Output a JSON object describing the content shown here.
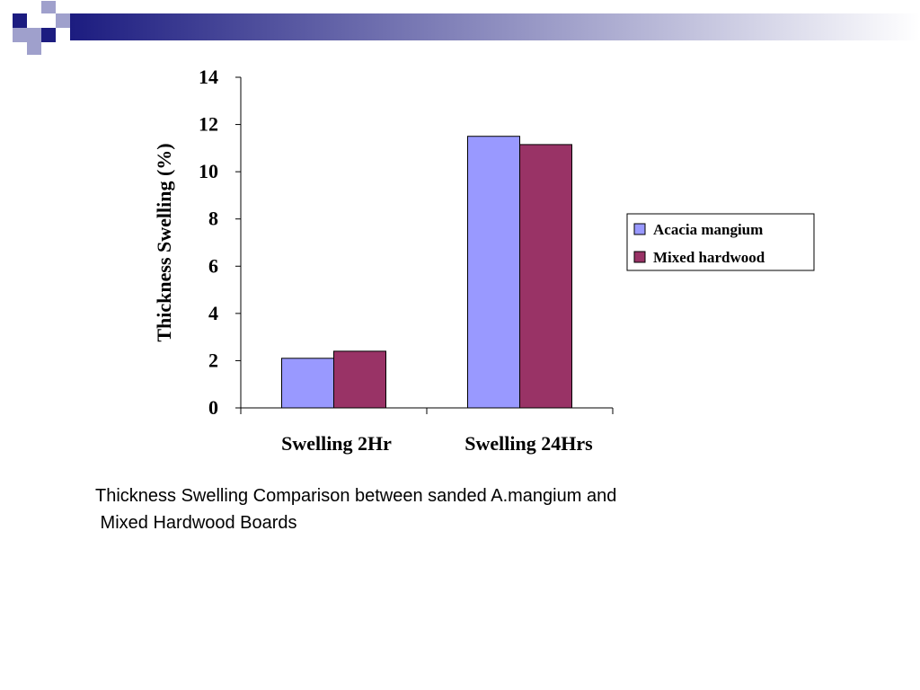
{
  "slide": {
    "caption_lines": [
      "Thickness Swelling Comparison between sanded A.mangium and",
      " Mixed Hardwood Boards"
    ],
    "colors": {
      "square_dark": "#1c1c80",
      "square_light": "#9fa0cc",
      "banner_start": "#1c1c80",
      "banner_end": "#ffffff"
    }
  },
  "chart_data": {
    "type": "bar",
    "categories": [
      "Swelling 2Hr",
      "Swelling 24Hrs"
    ],
    "series": [
      {
        "name": "Acacia mangium",
        "values": [
          2.1,
          11.5
        ],
        "color": "#9999ff"
      },
      {
        "name": "Mixed hardwood",
        "values": [
          2.4,
          11.15
        ],
        "color": "#993366"
      }
    ],
    "title": "",
    "xlabel": "",
    "ylabel": "Thickness Swelling (%)",
    "ylim": [
      0,
      14
    ],
    "yticks": [
      0,
      2,
      4,
      6,
      8,
      10,
      12,
      14
    ],
    "grid": false,
    "legend": "right"
  }
}
